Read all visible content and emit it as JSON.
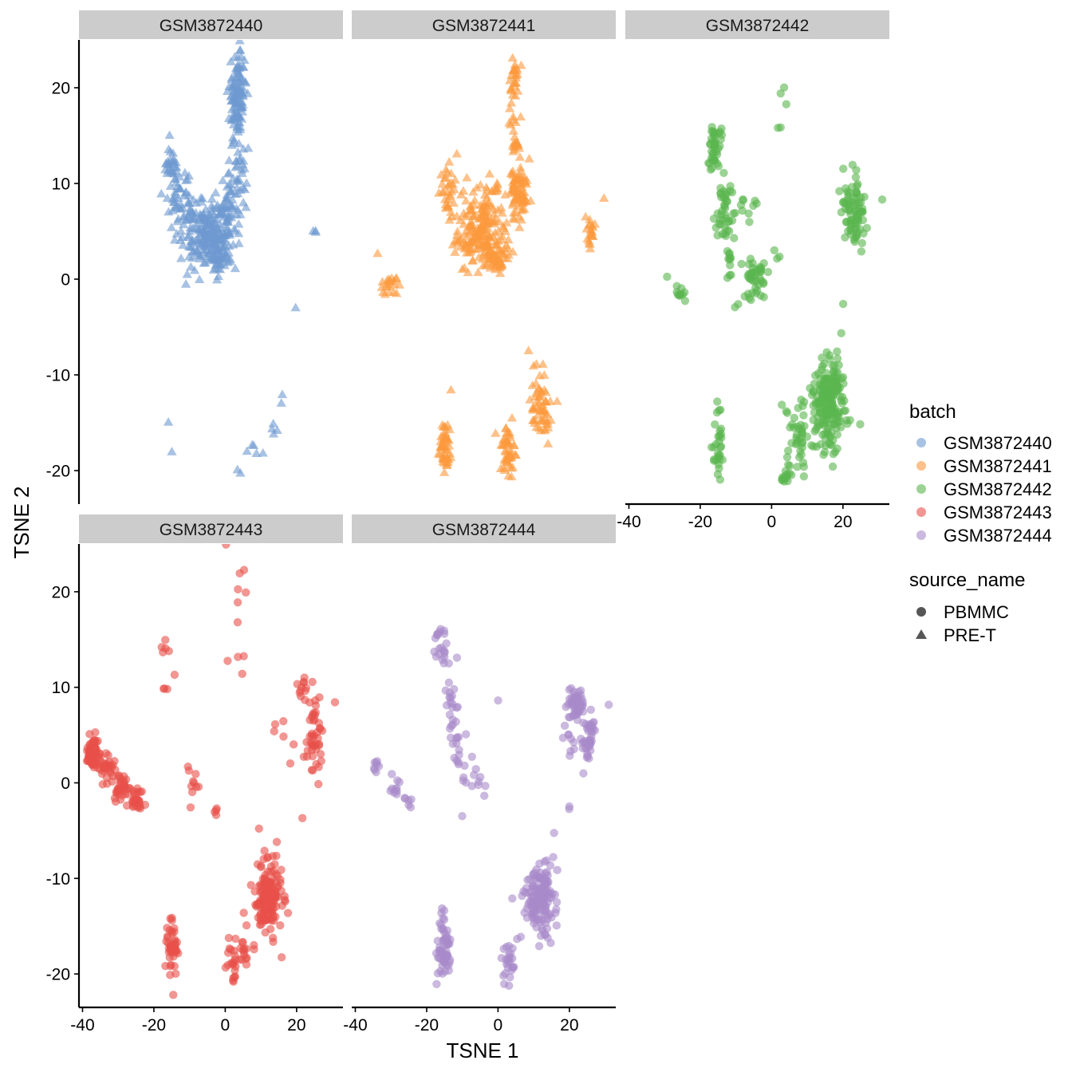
{
  "chart_data": {
    "type": "scatter",
    "facet_variable": "batch",
    "xlabel": "TSNE 1",
    "ylabel": "TSNE 2",
    "xlim": [
      -41,
      33
    ],
    "ylim": [
      -23.5,
      25
    ],
    "xticks": [
      -40,
      -20,
      0,
      20
    ],
    "yticks": [
      -20,
      -10,
      0,
      10,
      20
    ],
    "grid": false,
    "legend_position": "right",
    "legends": [
      {
        "title": "batch",
        "kind": "color",
        "entries": [
          {
            "label": "GSM3872440",
            "color": "#6e9ad0"
          },
          {
            "label": "GSM3872441",
            "color": "#fc9a3e"
          },
          {
            "label": "GSM3872442",
            "color": "#5ab64e"
          },
          {
            "label": "GSM3872443",
            "color": "#e8504a"
          },
          {
            "label": "GSM3872444",
            "color": "#a98bca"
          }
        ]
      },
      {
        "title": "source_name",
        "kind": "shape",
        "entries": [
          {
            "label": "PBMMC",
            "shape": "circle"
          },
          {
            "label": "PRE-T",
            "shape": "triangle"
          }
        ]
      }
    ],
    "panels": [
      {
        "label": "GSM3872440",
        "color": "#6e9ad0",
        "shape": "triangle",
        "clusters": [
          {
            "center": [
              3.5,
              19
            ],
            "spread": [
              1.5,
              3.0
            ],
            "n": 120
          },
          {
            "center": [
              -15,
              11.5
            ],
            "spread": [
              1.4,
              1.6
            ],
            "n": 40
          },
          {
            "center": [
              -12,
              7
            ],
            "spread": [
              2.2,
              2.0
            ],
            "n": 45
          },
          {
            "center": [
              -4,
              4.5
            ],
            "spread": [
              4.5,
              2.2
            ],
            "n": 220
          },
          {
            "center": [
              1,
              7.5
            ],
            "spread": [
              2.0,
              2.0
            ],
            "n": 40
          },
          {
            "center": [
              4,
              11
            ],
            "spread": [
              1.4,
              2.0
            ],
            "n": 25
          },
          {
            "center": [
              -2,
              2
            ],
            "spread": [
              1.6,
              1.0
            ],
            "n": 25
          },
          {
            "center": [
              25.5,
              4.5
            ],
            "spread": [
              1.0,
              0.8
            ],
            "n": 3
          },
          {
            "center": [
              20,
              -2.8
            ],
            "spread": [
              0.2,
              0.2
            ],
            "n": 1
          },
          {
            "center": [
              -16,
              -14.8
            ],
            "spread": [
              0.3,
              0.3
            ],
            "n": 1
          },
          {
            "center": [
              -15,
              -18.3
            ],
            "spread": [
              0.3,
              0.3
            ],
            "n": 1
          },
          {
            "center": [
              16,
              -12.2
            ],
            "spread": [
              0.4,
              0.4
            ],
            "n": 2
          },
          {
            "center": [
              14,
              -15.5
            ],
            "spread": [
              1.0,
              0.8
            ],
            "n": 4
          },
          {
            "center": [
              8,
              -17.5
            ],
            "spread": [
              2.0,
              1.0
            ],
            "n": 5
          },
          {
            "center": [
              3.5,
              -20
            ],
            "spread": [
              0.5,
              0.5
            ],
            "n": 2
          }
        ]
      },
      {
        "label": "GSM3872441",
        "color": "#fc9a3e",
        "shape": "triangle",
        "clusters": [
          {
            "center": [
              4.5,
              20
            ],
            "spread": [
              0.8,
              1.8
            ],
            "n": 30
          },
          {
            "center": [
              5,
              15
            ],
            "spread": [
              0.8,
              1.5
            ],
            "n": 20
          },
          {
            "center": [
              6,
              9
            ],
            "spread": [
              1.6,
              1.8
            ],
            "n": 80
          },
          {
            "center": [
              -14,
              9
            ],
            "spread": [
              1.5,
              2.0
            ],
            "n": 30
          },
          {
            "center": [
              -5,
              5
            ],
            "spread": [
              4.5,
              2.5
            ],
            "n": 200
          },
          {
            "center": [
              -1,
              2
            ],
            "spread": [
              2.5,
              1.0
            ],
            "n": 40
          },
          {
            "center": [
              -2,
              9.5
            ],
            "spread": [
              2.0,
              0.4
            ],
            "n": 10
          },
          {
            "center": [
              26,
              5
            ],
            "spread": [
              0.9,
              1.2
            ],
            "n": 20
          },
          {
            "center": [
              30,
              8.2
            ],
            "spread": [
              0.2,
              0.2
            ],
            "n": 1
          },
          {
            "center": [
              -30,
              -0.5
            ],
            "spread": [
              2.0,
              0.8
            ],
            "n": 20
          },
          {
            "center": [
              -34,
              2.7
            ],
            "spread": [
              0.3,
              0.3
            ],
            "n": 1
          },
          {
            "center": [
              -15,
              -17.5
            ],
            "spread": [
              1.0,
              1.8
            ],
            "n": 50
          },
          {
            "center": [
              3,
              -18
            ],
            "spread": [
              1.5,
              2.0
            ],
            "n": 50
          },
          {
            "center": [
              12,
              -13
            ],
            "spread": [
              2.0,
              2.0
            ],
            "n": 60
          },
          {
            "center": [
              8.5,
              -7
            ],
            "spread": [
              0.3,
              0.3
            ],
            "n": 1
          },
          {
            "center": [
              -13,
              -11.5
            ],
            "spread": [
              0.3,
              0.3
            ],
            "n": 1
          }
        ]
      },
      {
        "label": "GSM3872442",
        "color": "#5ab64e",
        "shape": "circle",
        "clusters": [
          {
            "center": [
              -16,
              13.5
            ],
            "spread": [
              1.2,
              1.8
            ],
            "n": 40
          },
          {
            "center": [
              -14,
              7
            ],
            "spread": [
              1.6,
              2.2
            ],
            "n": 35
          },
          {
            "center": [
              -9,
              7.5
            ],
            "spread": [
              3.0,
              1.2
            ],
            "n": 12
          },
          {
            "center": [
              -12,
              3
            ],
            "spread": [
              1.5,
              1.5
            ],
            "n": 15
          },
          {
            "center": [
              -5,
              0
            ],
            "spread": [
              2.5,
              1.5
            ],
            "n": 45
          },
          {
            "center": [
              23,
              7
            ],
            "spread": [
              2.2,
              2.5
            ],
            "n": 80
          },
          {
            "center": [
              3,
              17.5
            ],
            "spread": [
              1.5,
              2.5
            ],
            "n": 5
          },
          {
            "center": [
              2,
              3.5
            ],
            "spread": [
              2.5,
              1.0
            ],
            "n": 3
          },
          {
            "center": [
              -25.5,
              -1.5
            ],
            "spread": [
              1.2,
              0.5
            ],
            "n": 10
          },
          {
            "center": [
              -29.5,
              0.3
            ],
            "spread": [
              0.2,
              0.2
            ],
            "n": 1
          },
          {
            "center": [
              -15,
              -17
            ],
            "spread": [
              1.0,
              2.5
            ],
            "n": 30
          },
          {
            "center": [
              16,
              -13
            ],
            "spread": [
              2.8,
              3.0
            ],
            "n": 200
          },
          {
            "center": [
              8,
              -17
            ],
            "spread": [
              2.5,
              2.0
            ],
            "n": 40
          },
          {
            "center": [
              4,
              -20.5
            ],
            "spread": [
              1.0,
              0.7
            ],
            "n": 15
          },
          {
            "center": [
              20,
              -2.7
            ],
            "spread": [
              0.2,
              0.2
            ],
            "n": 1
          },
          {
            "center": [
              31,
              8.3
            ],
            "spread": [
              0.2,
              0.2
            ],
            "n": 1
          }
        ]
      },
      {
        "label": "GSM3872443",
        "color": "#e8504a",
        "shape": "circle",
        "clusters": [
          {
            "center": [
              -37,
              3
            ],
            "spread": [
              1.2,
              1.1
            ],
            "n": 80
          },
          {
            "center": [
              -33,
              1.5
            ],
            "spread": [
              1.5,
              0.8
            ],
            "n": 25
          },
          {
            "center": [
              -29,
              -0.5
            ],
            "spread": [
              2.0,
              0.8
            ],
            "n": 40
          },
          {
            "center": [
              -25,
              -1.8
            ],
            "spread": [
              1.2,
              0.6
            ],
            "n": 25
          },
          {
            "center": [
              -17,
              14.5
            ],
            "spread": [
              0.8,
              1.0
            ],
            "n": 5
          },
          {
            "center": [
              -16.5,
              10
            ],
            "spread": [
              0.4,
              0.2
            ],
            "n": 3
          },
          {
            "center": [
              -14,
              11.3
            ],
            "spread": [
              0.2,
              0.2
            ],
            "n": 1
          },
          {
            "center": [
              -9,
              0.5
            ],
            "spread": [
              1.5,
              2.2
            ],
            "n": 10
          },
          {
            "center": [
              -3,
              -3.2
            ],
            "spread": [
              0.6,
              0.5
            ],
            "n": 4
          },
          {
            "center": [
              4,
              20.5
            ],
            "spread": [
              2.0,
              2.5
            ],
            "n": 7
          },
          {
            "center": [
              4,
              11
            ],
            "spread": [
              2.5,
              2.0
            ],
            "n": 4
          },
          {
            "center": [
              22,
              9.5
            ],
            "spread": [
              1.0,
              0.7
            ],
            "n": 12
          },
          {
            "center": [
              25,
              5
            ],
            "spread": [
              1.2,
              2.3
            ],
            "n": 45
          },
          {
            "center": [
              17,
              6
            ],
            "spread": [
              3.0,
              1.0
            ],
            "n": 5
          },
          {
            "center": [
              31,
              8.2
            ],
            "spread": [
              0.2,
              0.2
            ],
            "n": 1
          },
          {
            "center": [
              20,
              -1.5
            ],
            "spread": [
              1.5,
              1.5
            ],
            "n": 2
          },
          {
            "center": [
              -15,
              -17.5
            ],
            "spread": [
              1.2,
              2.0
            ],
            "n": 45
          },
          {
            "center": [
              12,
              -12
            ],
            "spread": [
              2.8,
              2.5
            ],
            "n": 150
          },
          {
            "center": [
              4,
              -18
            ],
            "spread": [
              2.0,
              1.5
            ],
            "n": 30
          },
          {
            "center": [
              2,
              -20.3
            ],
            "spread": [
              0.6,
              0.3
            ],
            "n": 5
          }
        ]
      },
      {
        "label": "GSM3872444",
        "color": "#a98bca",
        "shape": "circle",
        "clusters": [
          {
            "center": [
              -16,
              14.5
            ],
            "spread": [
              1.2,
              1.5
            ],
            "n": 20
          },
          {
            "center": [
              -13,
              9
            ],
            "spread": [
              1.5,
              2.5
            ],
            "n": 20
          },
          {
            "center": [
              -11,
              3
            ],
            "spread": [
              1.5,
              3.0
            ],
            "n": 18
          },
          {
            "center": [
              -6,
              0
            ],
            "spread": [
              1.5,
              2.0
            ],
            "n": 10
          },
          {
            "center": [
              -34,
              1.5
            ],
            "spread": [
              1.3,
              0.8
            ],
            "n": 8
          },
          {
            "center": [
              -29,
              -0.5
            ],
            "spread": [
              1.5,
              0.8
            ],
            "n": 10
          },
          {
            "center": [
              -25,
              -1.8
            ],
            "spread": [
              1.0,
              0.5
            ],
            "n": 6
          },
          {
            "center": [
              22,
              8.5
            ],
            "spread": [
              1.3,
              1.3
            ],
            "n": 60
          },
          {
            "center": [
              25.5,
              4.5
            ],
            "spread": [
              1.0,
              1.8
            ],
            "n": 40
          },
          {
            "center": [
              20,
              4
            ],
            "spread": [
              1.5,
              1.5
            ],
            "n": 10
          },
          {
            "center": [
              31,
              8.1
            ],
            "spread": [
              0.2,
              0.2
            ],
            "n": 1
          },
          {
            "center": [
              0,
              8.6
            ],
            "spread": [
              0.2,
              0.2
            ],
            "n": 1
          },
          {
            "center": [
              20,
              -2.5
            ],
            "spread": [
              0.5,
              0.5
            ],
            "n": 2
          },
          {
            "center": [
              -15,
              -17
            ],
            "spread": [
              1.2,
              2.5
            ],
            "n": 60
          },
          {
            "center": [
              12,
              -12
            ],
            "spread": [
              2.8,
              2.5
            ],
            "n": 150
          },
          {
            "center": [
              3,
              -18.5
            ],
            "spread": [
              1.2,
              1.5
            ],
            "n": 25
          },
          {
            "center": [
              15.5,
              -5.2
            ],
            "spread": [
              0.3,
              0.3
            ],
            "n": 1
          }
        ]
      }
    ]
  }
}
